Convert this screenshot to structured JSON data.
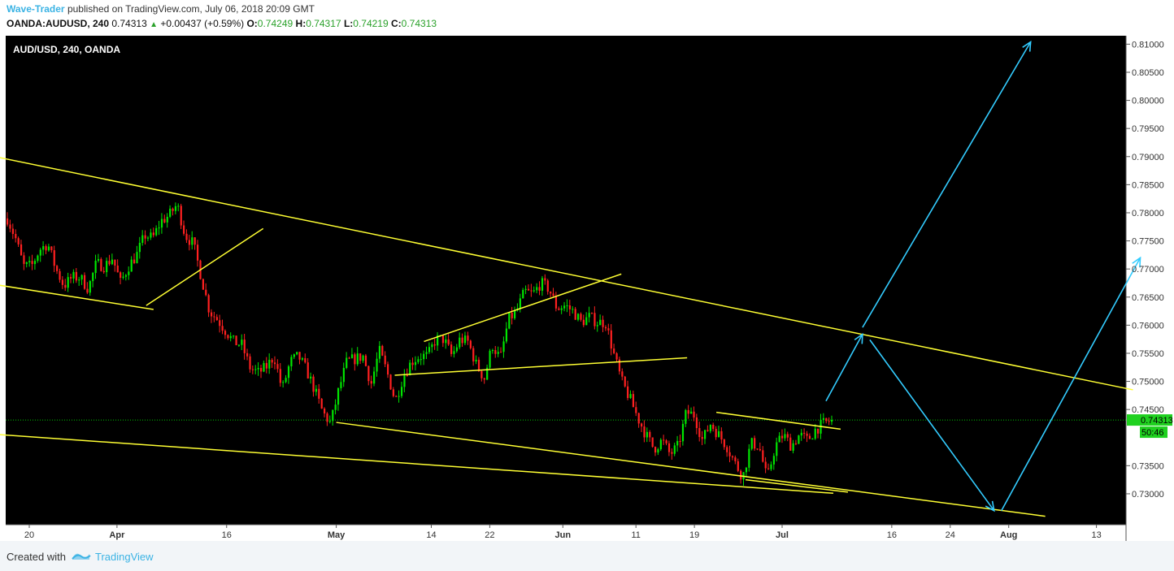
{
  "header": {
    "author": "Wave-Trader",
    "published": "published on TradingView.com, July 06, 2018 20:09 GMT",
    "symbol": "OANDA:AUDUSD, 240",
    "last": "0.74313",
    "change": "+0.00437 (+0.59%)",
    "o_label": "O:",
    "o_value": "0.74249",
    "h_label": "H:",
    "h_value": "0.74317",
    "l_label": "L:",
    "l_value": "0.74219",
    "c_label": "C:",
    "c_value": "0.74313"
  },
  "footer": {
    "created": "Created with",
    "brand": "TradingView"
  },
  "colors": {
    "background": "#000000",
    "bull": "#00e600",
    "bear": "#ff2020",
    "trendline": "#ffff33",
    "projection": "#33ccff",
    "price_line": "#00c800",
    "axis_bg": "#ffffff"
  },
  "chart_data": {
    "type": "candlestick",
    "title": "AUD/USD, 240, OANDA",
    "ylim": [
      0.7245,
      0.8115
    ],
    "y_ticks": [
      "0.81000",
      "0.80500",
      "0.80000",
      "0.79500",
      "0.79000",
      "0.78500",
      "0.78000",
      "0.77500",
      "0.77000",
      "0.76500",
      "0.76000",
      "0.75500",
      "0.75000",
      "0.74500",
      "0.73500",
      "0.73000"
    ],
    "x_ticks": [
      "20",
      "Apr",
      "16",
      "May",
      "14",
      "22",
      "Jun",
      "11",
      "19",
      "Jul",
      "16",
      "24",
      "Aug",
      "13"
    ],
    "last_price": "0.74313",
    "countdown": "50:46",
    "price_path": [
      0.779,
      0.7755,
      0.7705,
      0.7705,
      0.7735,
      0.7745,
      0.77,
      0.767,
      0.7685,
      0.7685,
      0.7665,
      0.771,
      0.7705,
      0.772,
      0.7675,
      0.7705,
      0.7725,
      0.776,
      0.7755,
      0.7785,
      0.7795,
      0.7815,
      0.776,
      0.7745,
      0.7685,
      0.7625,
      0.761,
      0.759,
      0.757,
      0.7565,
      0.7525,
      0.7515,
      0.7525,
      0.7545,
      0.7485,
      0.7535,
      0.7545,
      0.752,
      0.7485,
      0.7445,
      0.7425,
      0.7485,
      0.7535,
      0.754,
      0.7545,
      0.7495,
      0.7555,
      0.7515,
      0.7465,
      0.751,
      0.7535,
      0.7545,
      0.7545,
      0.7575,
      0.7575,
      0.7545,
      0.7575,
      0.757,
      0.753,
      0.7505,
      0.7565,
      0.754,
      0.761,
      0.7625,
      0.766,
      0.7655,
      0.7675,
      0.7665,
      0.763,
      0.7635,
      0.7625,
      0.7605,
      0.7615,
      0.7605,
      0.7605,
      0.755,
      0.75,
      0.747,
      0.7435,
      0.7405,
      0.738,
      0.7395,
      0.737,
      0.7385,
      0.7445,
      0.744,
      0.7395,
      0.7425,
      0.7405,
      0.7385,
      0.7355,
      0.733,
      0.739,
      0.7385,
      0.7325,
      0.7385,
      0.7405,
      0.7385,
      0.7405,
      0.7395,
      0.7415,
      0.7425,
      0.7431
    ],
    "trendlines": [
      {
        "name": "upper-channel",
        "from": {
          "date": "2018-03-13",
          "price": 0.7906
        },
        "to": {
          "date": "2018-08-18",
          "price": 0.7485
        }
      },
      {
        "name": "lower-channel",
        "from": {
          "date": "2018-03-13",
          "price": 0.7408
        },
        "to": {
          "date": "2018-07-08",
          "price": 0.7301
        }
      },
      {
        "name": "falling-wedge-lower",
        "from": {
          "date": "2018-05-01",
          "price": 0.7427
        },
        "to": {
          "date": "2018-08-06",
          "price": 0.726
        }
      },
      {
        "name": "falling-wedge-upper",
        "from": {
          "date": "2018-03-13",
          "price": 0.7677
        },
        "to": {
          "date": "2018-04-06",
          "price": 0.7628
        }
      },
      {
        "name": "rising-support-apr",
        "from": {
          "date": "2018-04-05",
          "price": 0.7635
        },
        "to": {
          "date": "2018-04-21",
          "price": 0.7772
        }
      },
      {
        "name": "rising-channel-top",
        "from": {
          "date": "2018-05-13",
          "price": 0.7571
        },
        "to": {
          "date": "2018-06-09",
          "price": 0.7691
        }
      },
      {
        "name": "rising-channel-bottom",
        "from": {
          "date": "2018-05-09",
          "price": 0.7511
        },
        "to": {
          "date": "2018-06-18",
          "price": 0.7542
        }
      },
      {
        "name": "flag-top",
        "from": {
          "date": "2018-06-22",
          "price": 0.7445
        },
        "to": {
          "date": "2018-07-09",
          "price": 0.7415
        }
      },
      {
        "name": "flag-bottom",
        "from": {
          "date": "2018-06-26",
          "price": 0.7325
        },
        "to": {
          "date": "2018-07-10",
          "price": 0.7303
        }
      }
    ],
    "projections": [
      {
        "from": {
          "date": "2018-07-07",
          "price": 0.7465
        },
        "to": {
          "date": "2018-07-12",
          "price": 0.7584
        }
      },
      {
        "from": {
          "date": "2018-07-13",
          "price": 0.7574
        },
        "to": {
          "date": "2018-07-30",
          "price": 0.727
        }
      },
      {
        "from": {
          "date": "2018-07-31",
          "price": 0.727
        },
        "to": {
          "date": "2018-08-19",
          "price": 0.772
        }
      },
      {
        "from": {
          "date": "2018-07-12",
          "price": 0.7596
        },
        "to": {
          "date": "2018-08-04",
          "price": 0.8104
        }
      }
    ]
  }
}
